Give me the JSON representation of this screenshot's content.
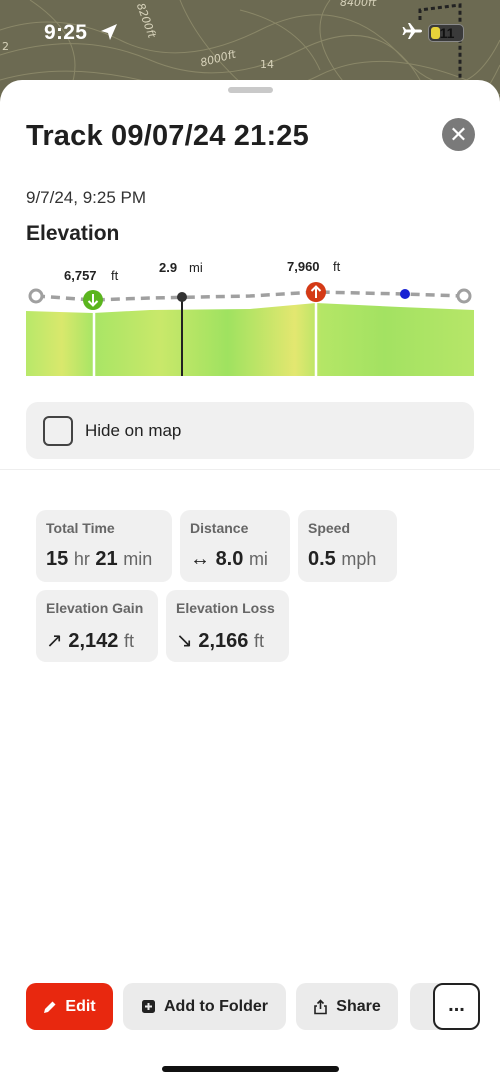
{
  "status_bar": {
    "time": "9:25",
    "battery": "11",
    "battery_level_percent": 30,
    "icons": [
      "location-arrow-icon",
      "airplane-icon",
      "battery-icon"
    ]
  },
  "map": {
    "labels": [
      "8200ft",
      "8000ft",
      "14",
      "8400ft",
      "2"
    ]
  },
  "sheet": {
    "title": "Track 09/07/24 21:25",
    "datetime": "9/7/24, 9:25 PM",
    "elevation_heading": "Elevation"
  },
  "elevation_chart": {
    "low_value": "6,757",
    "low_unit": "ft",
    "cursor_value": "2.9",
    "cursor_unit": "mi",
    "high_value": "7,960",
    "high_unit": "ft",
    "colors": {
      "low": "#5bb51e",
      "high": "#d43a16",
      "cursor": "#333333",
      "current": "#1720d4"
    }
  },
  "hide_on_map": {
    "label": "Hide on map",
    "checked": false
  },
  "stats": {
    "total_time": {
      "label": "Total Time",
      "hours": "15",
      "hr_unit": "hr",
      "minutes": "21",
      "min_unit": "min"
    },
    "distance": {
      "label": "Distance",
      "icon": "↔",
      "value": "8.0",
      "unit": "mi"
    },
    "speed": {
      "label": "Speed",
      "value": "0.5",
      "unit": "mph"
    },
    "elevation_gain": {
      "label": "Elevation Gain",
      "icon": "↗",
      "value": "2,142",
      "unit": "ft"
    },
    "elevation_loss": {
      "label": "Elevation Loss",
      "icon": "↘",
      "value": "2,166",
      "unit": "ft"
    }
  },
  "toolbar": {
    "edit_label": "Edit",
    "add_to_folder_label": "Add to Folder",
    "share_label": "Share",
    "more_label": "...",
    "accent": "#e8280f"
  }
}
